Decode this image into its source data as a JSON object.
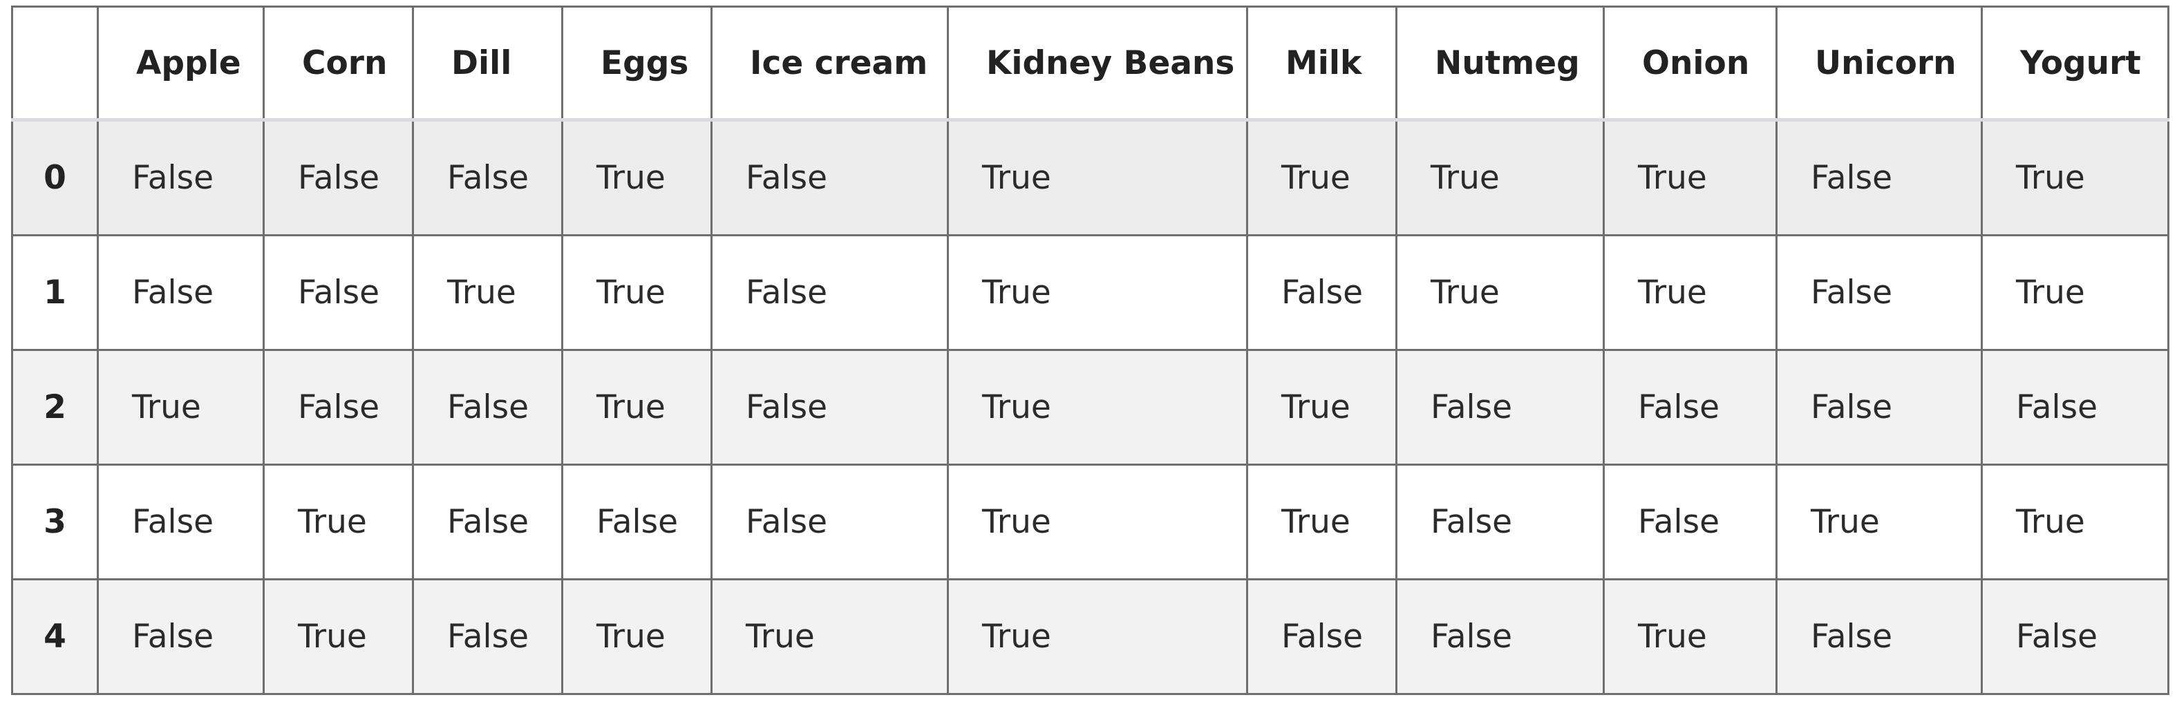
{
  "table": {
    "index_header": "",
    "columns": [
      "Apple",
      "Corn",
      "Dill",
      "Eggs",
      "Ice cream",
      "Kidney Beans",
      "Milk",
      "Nutmeg",
      "Onion",
      "Unicorn",
      "Yogurt"
    ],
    "rows": [
      {
        "index": "0",
        "cells": [
          "False",
          "False",
          "False",
          "True",
          "False",
          "True",
          "True",
          "True",
          "True",
          "False",
          "True"
        ]
      },
      {
        "index": "1",
        "cells": [
          "False",
          "False",
          "True",
          "True",
          "False",
          "True",
          "False",
          "True",
          "True",
          "False",
          "True"
        ]
      },
      {
        "index": "2",
        "cells": [
          "True",
          "False",
          "False",
          "True",
          "False",
          "True",
          "True",
          "False",
          "False",
          "False",
          "False"
        ]
      },
      {
        "index": "3",
        "cells": [
          "False",
          "True",
          "False",
          "False",
          "False",
          "True",
          "True",
          "False",
          "False",
          "True",
          "True"
        ]
      },
      {
        "index": "4",
        "cells": [
          "False",
          "True",
          "False",
          "True",
          "True",
          "True",
          "False",
          "False",
          "True",
          "False",
          "False"
        ]
      }
    ]
  },
  "colors": {
    "border": "#6f6f6f",
    "header_rule": "#d9dbe1",
    "row_shade": "#ededed",
    "row_plain": "#ffffff",
    "text": "#222222"
  }
}
